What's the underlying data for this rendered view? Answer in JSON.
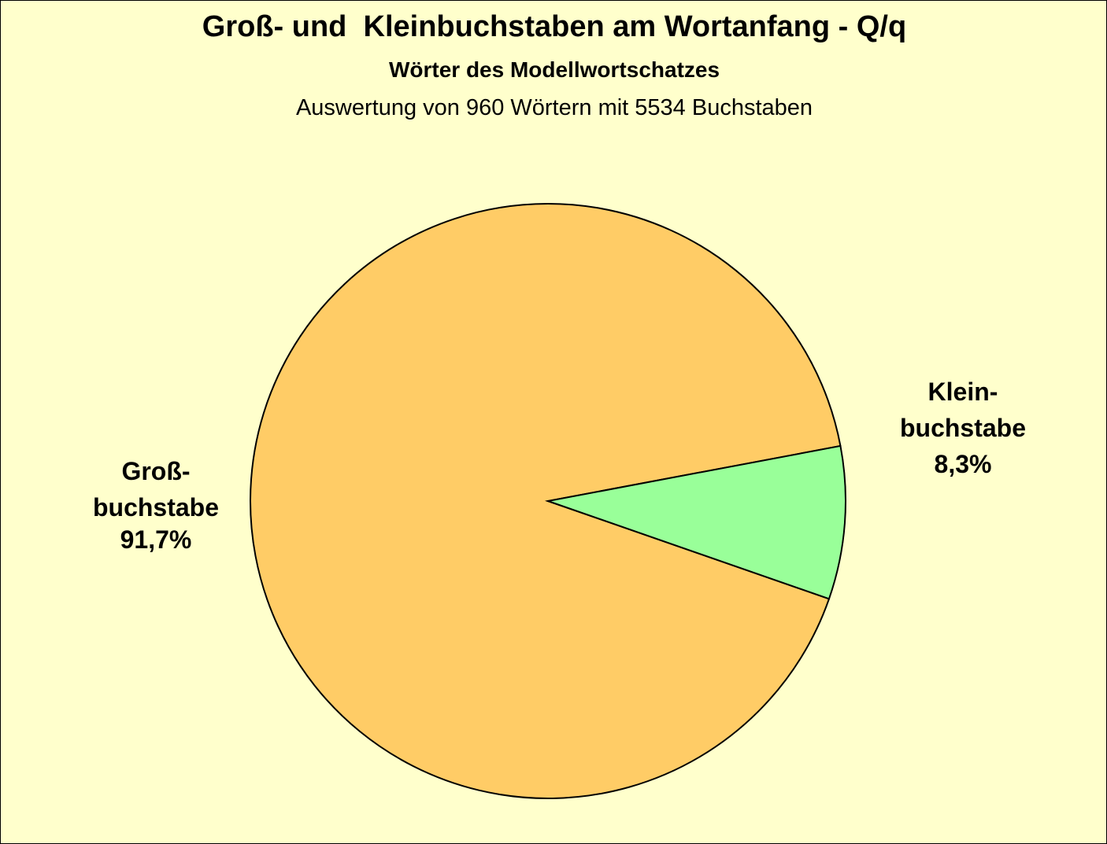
{
  "chart_data": {
    "type": "pie",
    "title": "Groß- und  Kleinbuchstaben am Wortanfang - Q/q",
    "subtitle": "Wörter des Modellwortschatzes",
    "note": "Auswertung von 960 Wörtern mit 5534 Buchstaben",
    "categories": [
      "Groß-\nbuchstabe",
      "Klein-\nbuchstabe"
    ],
    "values": [
      91.7,
      8.3
    ],
    "value_labels": [
      "91,7%",
      "8,3%"
    ],
    "colors": [
      "#ffcc66",
      "#99ff99"
    ]
  }
}
